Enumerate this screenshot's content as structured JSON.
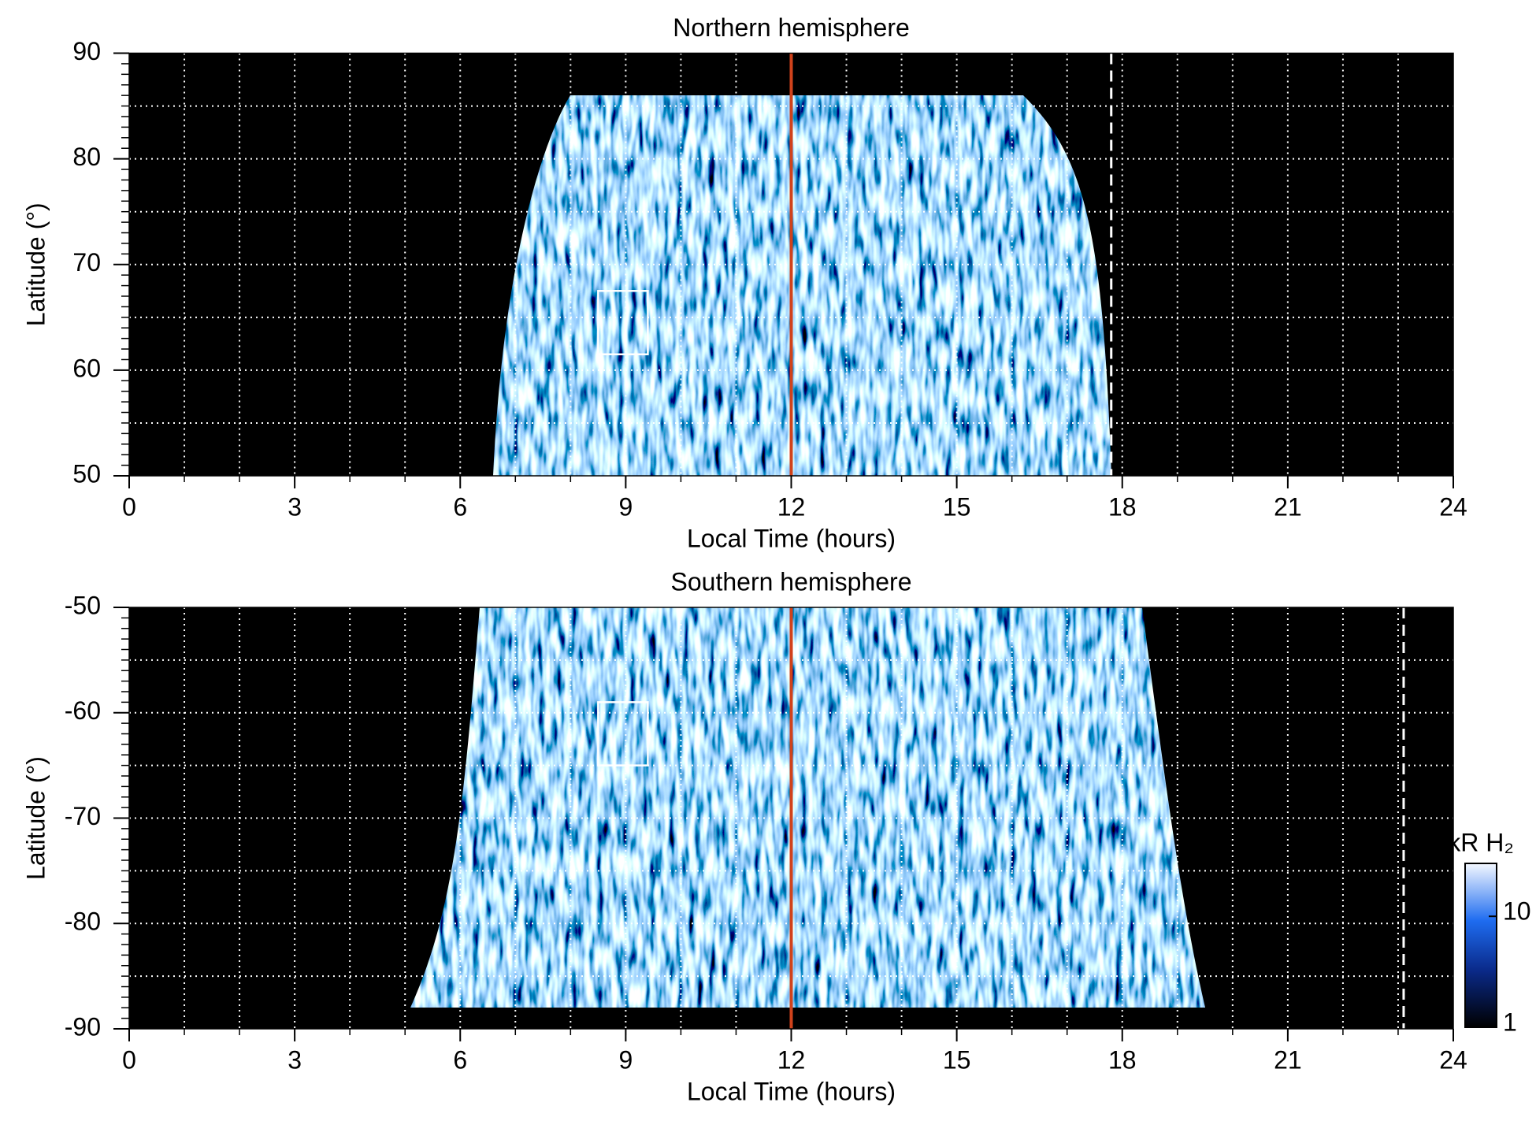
{
  "chart_data": [
    {
      "type": "heatmap",
      "title": "Northern hemisphere",
      "xlabel": "Local Time (hours)",
      "ylabel": "Latitude (°)",
      "xlim": [
        0,
        24
      ],
      "xticks": [
        0,
        3,
        6,
        9,
        12,
        15,
        18,
        21,
        24
      ],
      "ylim": [
        50,
        90
      ],
      "yticks": [
        50,
        60,
        70,
        80,
        90
      ],
      "grid": true,
      "xgrid_step": 1,
      "ygrid_step": 5,
      "xminor_step": 1,
      "yminor_step": 1,
      "vlines": [
        {
          "x": 12,
          "color": "#d0421b",
          "style": "solid"
        },
        {
          "x": 17.8,
          "color": "#ffffff",
          "style": "dashed"
        }
      ],
      "box": {
        "xlim": [
          8.5,
          9.4
        ],
        "ylim": [
          61.5,
          67.5
        ]
      }
    },
    {
      "type": "heatmap",
      "title": "Southern hemisphere",
      "xlabel": "Local Time (hours)",
      "ylabel": "Latitude (°)",
      "xlim": [
        0,
        24
      ],
      "xticks": [
        0,
        3,
        6,
        9,
        12,
        15,
        18,
        21,
        24
      ],
      "ylim": [
        -90,
        -50
      ],
      "yticks": [
        -90,
        -80,
        -70,
        -60,
        -50
      ],
      "grid": true,
      "xgrid_step": 1,
      "ygrid_step": 5,
      "xminor_step": 1,
      "yminor_step": 1,
      "vlines": [
        {
          "x": 12,
          "color": "#d0421b",
          "style": "solid"
        },
        {
          "x": 23.1,
          "color": "#ffffff",
          "style": "dashed"
        }
      ],
      "box": {
        "xlim": [
          8.5,
          9.4
        ],
        "ylim": [
          -65,
          -59
        ]
      },
      "colorbar": {
        "label": "kR H₂",
        "scale": "log",
        "lim": [
          1,
          30
        ],
        "ticks": [
          1,
          10
        ]
      }
    }
  ]
}
